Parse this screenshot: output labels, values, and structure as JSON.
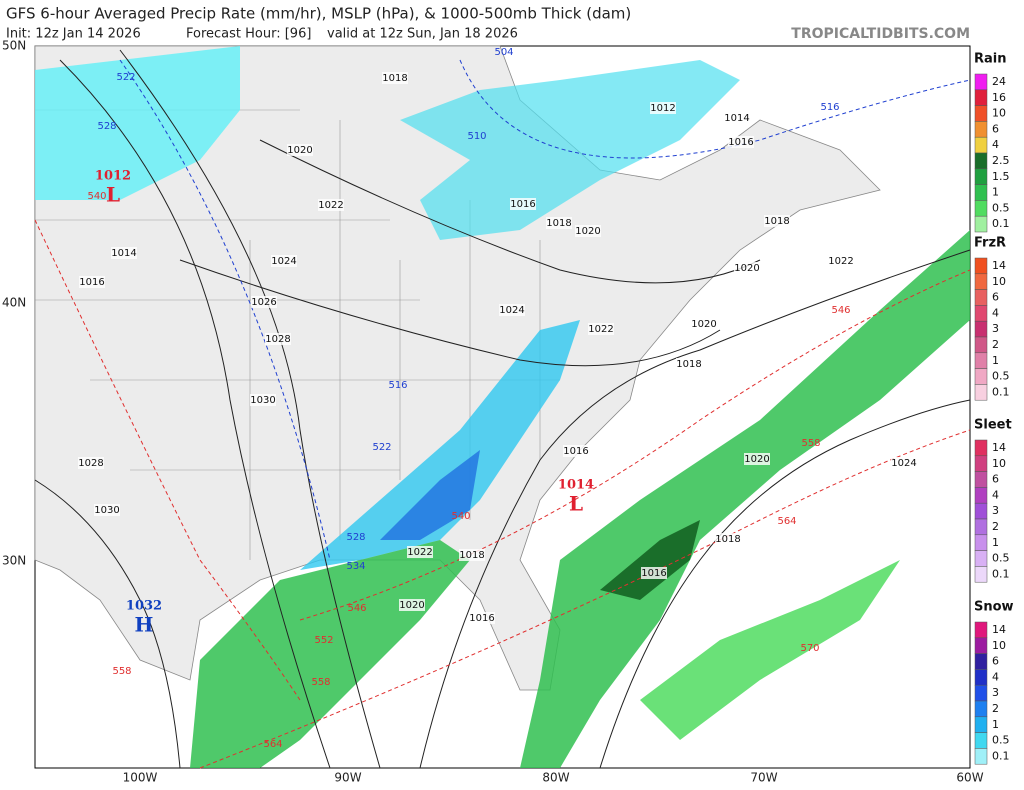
{
  "header": {
    "title": "GFS 6-hour Averaged Precip Rate (mm/hr), MSLP (hPa), & 1000-500mb Thick (dam)",
    "init": "Init: 12z Jan 14 2026",
    "forecast_hour": "Forecast Hour: [96]",
    "valid": "valid at 12z Sun, Jan 18 2026",
    "site": "TROPICALTIDBITS.COM"
  },
  "axes": {
    "lat_labels": [
      "50N",
      "40N",
      "30N"
    ],
    "lon_labels": [
      "100W",
      "90W",
      "80W",
      "70W",
      "60W"
    ]
  },
  "legends": [
    {
      "title": "Rain",
      "labels": [
        "24",
        "16",
        "10",
        "6",
        "4",
        "2.5",
        "1.5",
        "1",
        "0.5",
        "0.1"
      ],
      "colors": [
        "#f01ef0",
        "#e0203c",
        "#f05028",
        "#f09030",
        "#f0d040",
        "#1a6e2a",
        "#20a040",
        "#30c050",
        "#50dc60",
        "#a0f0a0"
      ]
    },
    {
      "title": "FrzR",
      "labels": [
        "14",
        "10",
        "6",
        "4",
        "3",
        "2",
        "1",
        "0.5",
        "0.1"
      ],
      "colors": [
        "#f05020",
        "#f06840",
        "#e86060",
        "#e04870",
        "#c83070",
        "#d05888",
        "#e080a8",
        "#f0a8c4",
        "#f8d0e0"
      ]
    },
    {
      "title": "Sleet",
      "labels": [
        "14",
        "10",
        "6",
        "4",
        "3",
        "2",
        "1",
        "0.5",
        "0.1"
      ],
      "colors": [
        "#e03060",
        "#d04080",
        "#c050a0",
        "#b040c0",
        "#a050d8",
        "#b070e0",
        "#c890ec",
        "#d8b0f4",
        "#ecd8fa"
      ]
    },
    {
      "title": "Snow",
      "labels": [
        "14",
        "10",
        "6",
        "4",
        "3",
        "2",
        "1",
        "0.5",
        "0.1"
      ],
      "colors": [
        "#e0187c",
        "#9c1ca0",
        "#3020a0",
        "#2030c8",
        "#2050e8",
        "#1e80f0",
        "#20b0f0",
        "#40d8f0",
        "#a0f0f8"
      ]
    }
  ],
  "pressure_centers": [
    {
      "value": "1012",
      "letter": "L",
      "color": "#e02030"
    },
    {
      "value": "1014",
      "letter": "L",
      "color": "#e02030"
    },
    {
      "value": "1032",
      "letter": "H",
      "color": "#1040c0"
    }
  ],
  "isobar_labels": [
    "1018",
    "1012",
    "1014",
    "1016",
    "1020",
    "1014",
    "1016",
    "1022",
    "1016",
    "1018",
    "1020",
    "1018",
    "1024",
    "1020",
    "1022",
    "1026",
    "1024",
    "1022",
    "1020",
    "1028",
    "1018",
    "1030",
    "1028",
    "1016",
    "1020",
    "1024",
    "1030",
    "1018",
    "1022",
    "1018",
    "1016",
    "1020",
    "1016"
  ],
  "thickness_cold": {
    "color": "#2040d0",
    "labels": [
      "504",
      "522",
      "528",
      "510",
      "516",
      "516",
      "522",
      "528",
      "534"
    ]
  },
  "thickness_warm": {
    "color": "#e03030",
    "labels": [
      "540",
      "540",
      "546",
      "552",
      "558",
      "558",
      "564",
      "546",
      "558",
      "564",
      "570"
    ]
  }
}
